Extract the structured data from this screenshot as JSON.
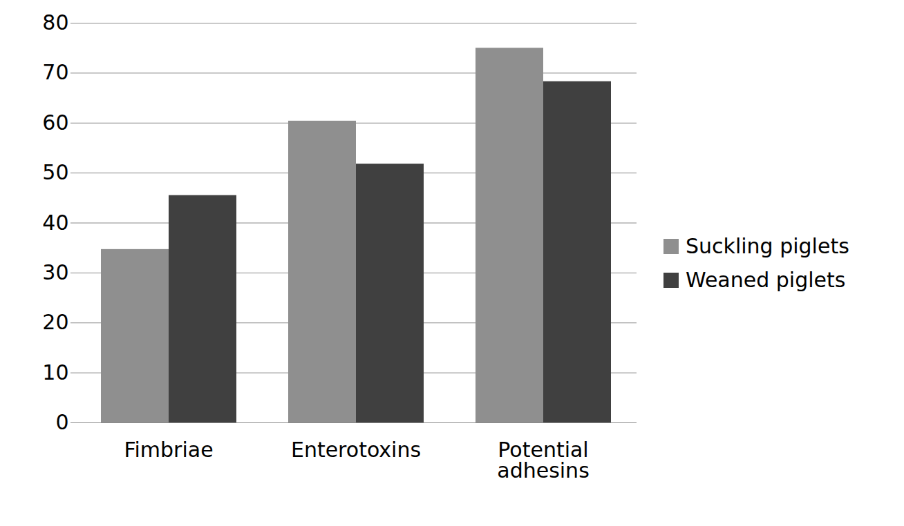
{
  "chart_data": {
    "type": "bar",
    "categories": [
      "Fimbriae",
      "Enterotoxins",
      "Potential adhesins"
    ],
    "series": [
      {
        "name": "Suckling piglets",
        "color": "#8f8f8f",
        "values": [
          34.7,
          60.4,
          75
        ]
      },
      {
        "name": "Weaned piglets",
        "color": "#404040",
        "values": [
          45.5,
          51.8,
          68.3
        ]
      }
    ],
    "ylim": [
      0,
      80
    ],
    "yticks": [
      0,
      10,
      20,
      30,
      40,
      50,
      60,
      70,
      80
    ],
    "grid": true,
    "legend": "right"
  }
}
